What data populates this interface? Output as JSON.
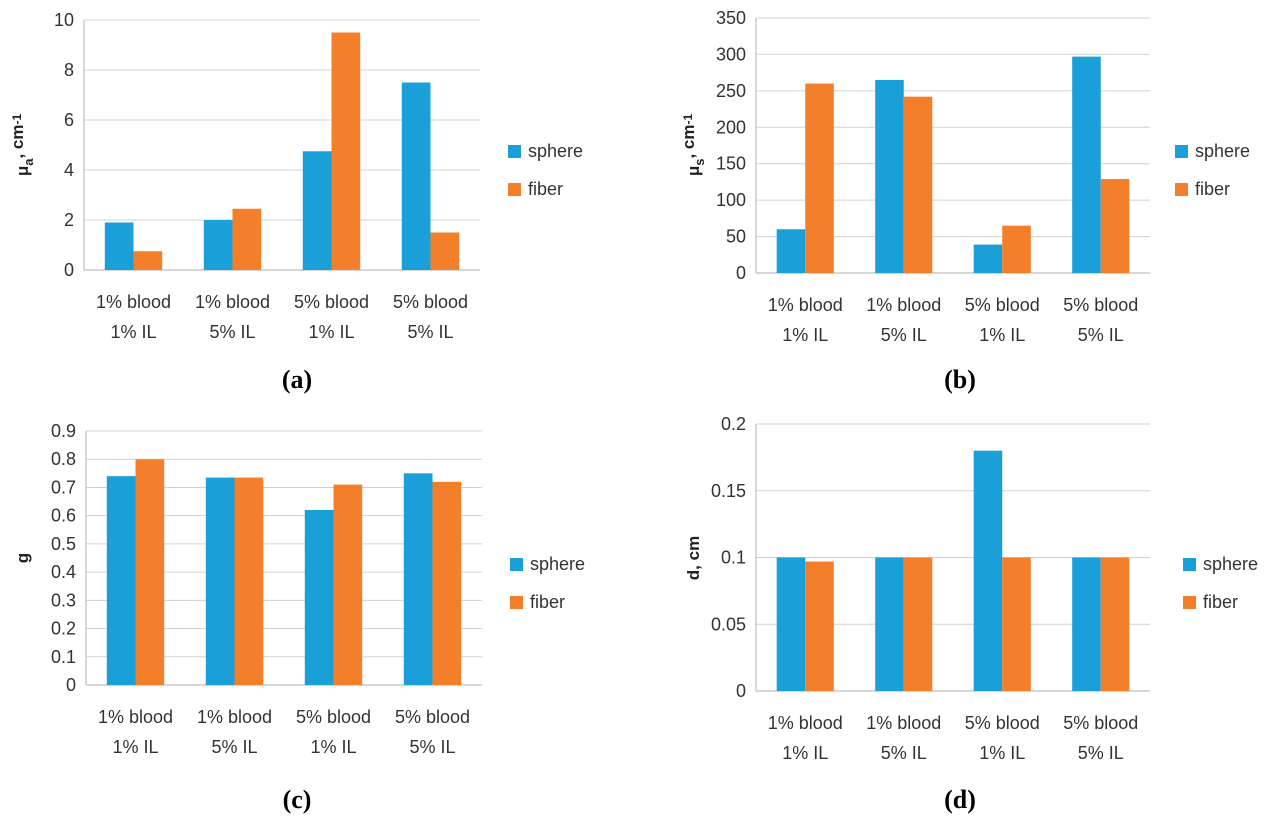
{
  "colors": {
    "sphere": "#1a9fd9",
    "fiber": "#f47f2b",
    "grid": "#d0d0d0",
    "axis": "#bfbfbf"
  },
  "chart_data": [
    {
      "type": "bar",
      "panel_label": "(a)",
      "ylabel": "μa, cm-1",
      "ylabel_main": "μ",
      "ylabel_sub": "a",
      "ylabel_mid": ", cm",
      "ylabel_sup": "-1",
      "categories": [
        [
          "1% blood",
          "1% IL"
        ],
        [
          "1% blood",
          "5% IL"
        ],
        [
          "5% blood",
          "1% IL"
        ],
        [
          "5% blood",
          "5% IL"
        ]
      ],
      "ylim": [
        0,
        10
      ],
      "yticks": [
        0,
        2,
        4,
        6,
        8,
        10
      ],
      "ytick_labels": [
        "0",
        "2",
        "4",
        "6",
        "8",
        "10"
      ],
      "grid": true,
      "legend_position": "right",
      "series": [
        {
          "name": "sphere",
          "values": [
            1.9,
            2.0,
            4.75,
            7.5
          ]
        },
        {
          "name": "fiber",
          "values": [
            0.75,
            2.45,
            9.5,
            1.5
          ]
        }
      ]
    },
    {
      "type": "bar",
      "panel_label": "(b)",
      "ylabel": "μs, cm-1",
      "ylabel_main": "μ",
      "ylabel_sub": "s",
      "ylabel_mid": ", cm",
      "ylabel_sup": "-1",
      "categories": [
        [
          "1% blood",
          "1% IL"
        ],
        [
          "1% blood",
          "5% IL"
        ],
        [
          "5% blood",
          "1% IL"
        ],
        [
          "5% blood",
          "5% IL"
        ]
      ],
      "ylim": [
        0,
        350
      ],
      "yticks": [
        0,
        50,
        100,
        150,
        200,
        250,
        300,
        350
      ],
      "ytick_labels": [
        "0",
        "50",
        "100",
        "150",
        "200",
        "250",
        "300",
        "350"
      ],
      "grid": true,
      "legend_position": "right",
      "series": [
        {
          "name": "sphere",
          "values": [
            60,
            265,
            39,
            297
          ]
        },
        {
          "name": "fiber",
          "values": [
            260,
            242,
            65,
            129
          ]
        }
      ]
    },
    {
      "type": "bar",
      "panel_label": "(c)",
      "ylabel": "g",
      "ylabel_main": "g",
      "ylabel_sub": "",
      "ylabel_mid": "",
      "ylabel_sup": "",
      "categories": [
        [
          "1% blood",
          "1% IL"
        ],
        [
          "1% blood",
          "5% IL"
        ],
        [
          "5% blood",
          "1% IL"
        ],
        [
          "5% blood",
          "5% IL"
        ]
      ],
      "ylim": [
        0,
        0.9
      ],
      "yticks": [
        0,
        0.1,
        0.2,
        0.3,
        0.4,
        0.5,
        0.6,
        0.7,
        0.8,
        0.9
      ],
      "ytick_labels": [
        "0",
        "0.1",
        "0.2",
        "0.3",
        "0.4",
        "0.5",
        "0.6",
        "0.7",
        "0.8",
        "0.9"
      ],
      "grid": true,
      "legend_position": "right",
      "series": [
        {
          "name": "sphere",
          "values": [
            0.74,
            0.735,
            0.62,
            0.75
          ]
        },
        {
          "name": "fiber",
          "values": [
            0.8,
            0.735,
            0.71,
            0.72
          ]
        }
      ]
    },
    {
      "type": "bar",
      "panel_label": "(d)",
      "ylabel": "d, cm",
      "ylabel_main": "d, cm",
      "ylabel_sub": "",
      "ylabel_mid": "",
      "ylabel_sup": "",
      "categories": [
        [
          "1% blood",
          "1% IL"
        ],
        [
          "1% blood",
          "5% IL"
        ],
        [
          "5% blood",
          "1% IL"
        ],
        [
          "5% blood",
          "5% IL"
        ]
      ],
      "ylim": [
        0,
        0.2
      ],
      "yticks": [
        0,
        0.05,
        0.1,
        0.15,
        0.2
      ],
      "ytick_labels": [
        "0",
        "0.05",
        "0.1",
        "0.15",
        "0.2"
      ],
      "grid": true,
      "legend_position": "right",
      "series": [
        {
          "name": "sphere",
          "values": [
            0.1,
            0.1,
            0.18,
            0.1
          ]
        },
        {
          "name": "fiber",
          "values": [
            0.097,
            0.1,
            0.1,
            0.1
          ]
        }
      ]
    }
  ]
}
